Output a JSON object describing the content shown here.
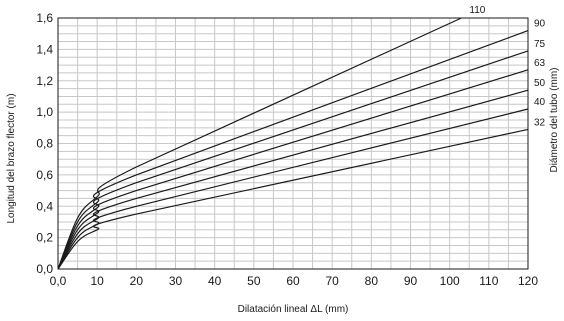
{
  "chart_data": {
    "type": "line",
    "xlabel": "Dilatación lineal ΔL  (mm)",
    "ylabel": "Longitud del brazo flector  (m)",
    "y2label": "Diámetro del tubo  (mm)",
    "xlim": [
      0,
      120
    ],
    "ylim": [
      0,
      1.6
    ],
    "x_ticks": [
      "0,0",
      "10",
      "20",
      "30",
      "40",
      "50",
      "60",
      "70",
      "80",
      "90",
      "100",
      "110",
      "120"
    ],
    "y_ticks": [
      "0,0",
      "0,2",
      "0,4",
      "0,6",
      "0,8",
      "1,0",
      "1,2",
      "1,4",
      "1,6"
    ],
    "grid": true,
    "series": [
      {
        "name": "110",
        "points": [
          [
            0,
            0
          ],
          [
            5,
            0.325
          ],
          [
            10,
            0.46
          ],
          [
            20,
            0.65
          ],
          [
            103,
            1.6
          ]
        ]
      },
      {
        "name": "90",
        "points": [
          [
            0,
            0
          ],
          [
            5,
            0.3
          ],
          [
            10,
            0.425
          ],
          [
            20,
            0.6
          ],
          [
            120,
            1.52
          ]
        ]
      },
      {
        "name": "75",
        "points": [
          [
            0,
            0
          ],
          [
            5,
            0.275
          ],
          [
            10,
            0.39
          ],
          [
            20,
            0.55
          ],
          [
            120,
            1.39
          ]
        ]
      },
      {
        "name": "63",
        "points": [
          [
            0,
            0
          ],
          [
            5,
            0.25
          ],
          [
            10,
            0.355
          ],
          [
            20,
            0.5
          ],
          [
            120,
            1.27
          ]
        ]
      },
      {
        "name": "50",
        "points": [
          [
            0,
            0
          ],
          [
            5,
            0.225
          ],
          [
            10,
            0.32
          ],
          [
            20,
            0.45
          ],
          [
            120,
            1.14
          ]
        ]
      },
      {
        "name": "40",
        "points": [
          [
            0,
            0
          ],
          [
            5,
            0.2
          ],
          [
            10,
            0.285
          ],
          [
            20,
            0.4
          ],
          [
            120,
            1.02
          ]
        ]
      },
      {
        "name": "32",
        "points": [
          [
            0,
            0
          ],
          [
            5,
            0.175
          ],
          [
            10,
            0.25
          ],
          [
            20,
            0.35
          ],
          [
            120,
            0.89
          ]
        ]
      }
    ]
  }
}
